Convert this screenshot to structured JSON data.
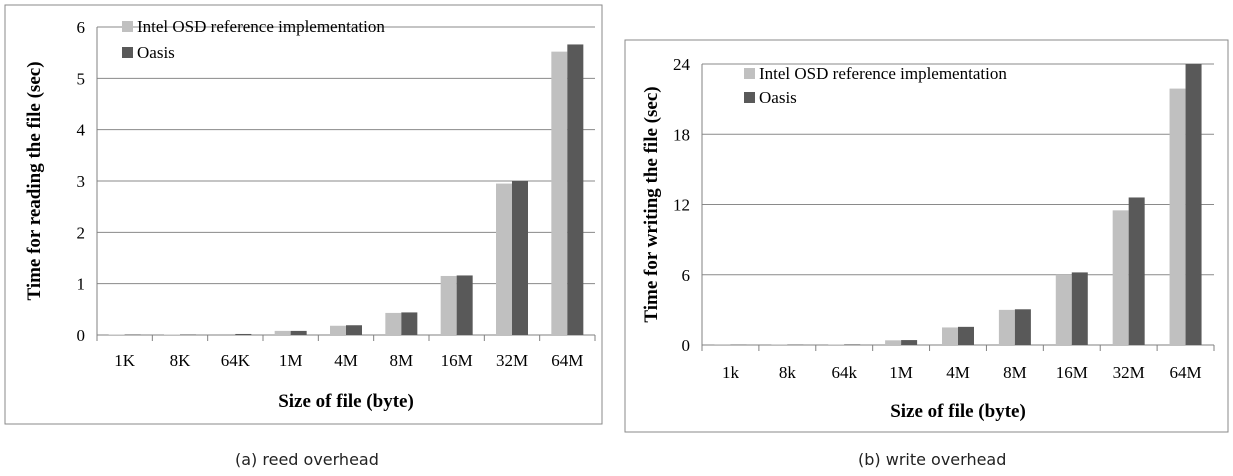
{
  "chart_data": [
    {
      "type": "bar",
      "caption": "(a) reed overhead",
      "xlabel": "Size of file (byte)",
      "ylabel": "Time for reading the file (sec)",
      "categories": [
        "1K",
        "8K",
        "64K",
        "1M",
        "4M",
        "8M",
        "16M",
        "32M",
        "64M"
      ],
      "ylim": [
        0,
        6
      ],
      "yticks": [
        "0",
        "1",
        "2",
        "3",
        "4",
        "5",
        "6"
      ],
      "grid": true,
      "legend_position": "top-left",
      "series": [
        {
          "name": "Intel OSD reference implementation",
          "color": "#c0c0c0",
          "values": [
            0.01,
            0.01,
            0.02,
            0.08,
            0.18,
            0.43,
            1.15,
            2.95,
            5.52
          ]
        },
        {
          "name": "Oasis",
          "color": "#595959",
          "values": [
            0.01,
            0.01,
            0.02,
            0.08,
            0.19,
            0.44,
            1.16,
            3.0,
            5.66
          ]
        }
      ]
    },
    {
      "type": "bar",
      "caption": "(b) write overhead",
      "xlabel": "Size of file (byte)",
      "ylabel": "Time for writing the file (sec)",
      "categories": [
        "1k",
        "8k",
        "64k",
        "1M",
        "4M",
        "8M",
        "16M",
        "32M",
        "64M"
      ],
      "ylim": [
        0,
        24
      ],
      "yticks": [
        "0",
        "6",
        "12",
        "18",
        "24"
      ],
      "grid": true,
      "legend_position": "top-left",
      "series": [
        {
          "name": "Intel OSD reference implementation",
          "color": "#c0c0c0",
          "values": [
            0.02,
            0.03,
            0.05,
            0.4,
            1.5,
            3.0,
            6.0,
            11.5,
            21.9
          ]
        },
        {
          "name": "Oasis",
          "color": "#595959",
          "values": [
            0.02,
            0.03,
            0.05,
            0.42,
            1.55,
            3.05,
            6.2,
            12.6,
            24.0
          ]
        }
      ]
    }
  ]
}
